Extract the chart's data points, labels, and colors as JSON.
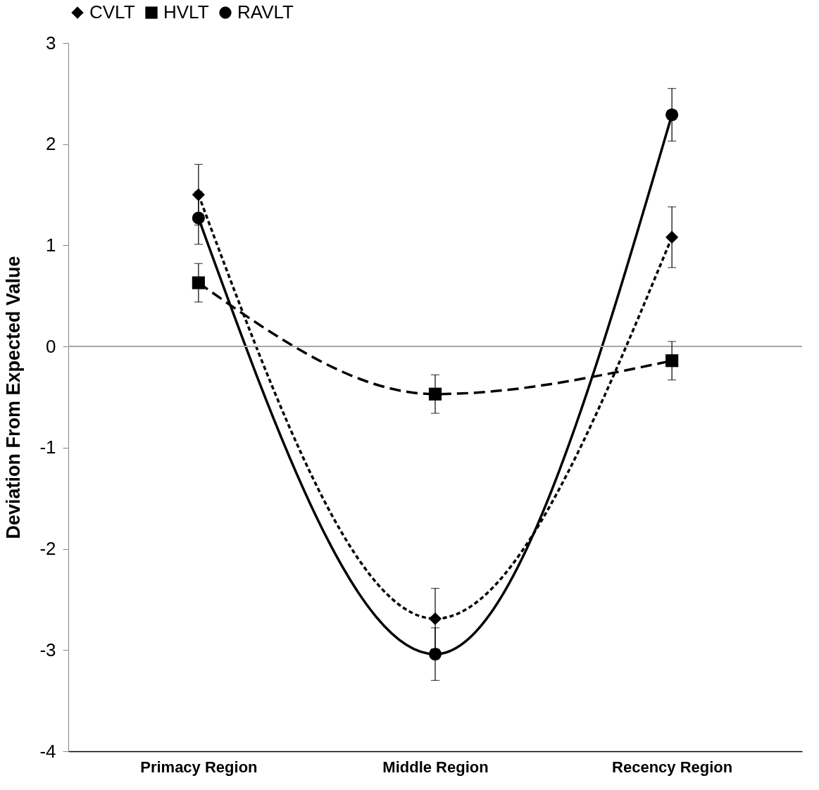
{
  "chart_data": {
    "type": "line",
    "ylabel": "Deviation From Expected Value",
    "categories": [
      "Primacy Region",
      "Middle Region",
      "Recency Region"
    ],
    "series": [
      {
        "name": "CVLT",
        "color": "#000000",
        "marker": "diamond",
        "line_style": "dotted",
        "values": [
          1.5,
          -2.69,
          1.08
        ],
        "errors": [
          0.3,
          0.3,
          0.3
        ]
      },
      {
        "name": "HVLT",
        "color": "#000000",
        "marker": "square",
        "line_style": "dashed",
        "values": [
          0.63,
          -0.47,
          -0.14
        ],
        "errors": [
          0.19,
          0.19,
          0.19
        ]
      },
      {
        "name": "RAVLT",
        "color": "#000000",
        "marker": "circle",
        "line_style": "solid",
        "values": [
          1.27,
          -3.04,
          2.29
        ],
        "errors": [
          0.26,
          0.26,
          0.26
        ]
      }
    ],
    "ylim": [
      -4,
      3
    ],
    "yticks": [
      -4,
      -3,
      -2,
      -1,
      0,
      1,
      2,
      3
    ],
    "grid": false,
    "legend": "top",
    "ref_lines": [
      {
        "axis": "y",
        "value": 0,
        "color": "#a6a6a6"
      }
    ]
  }
}
